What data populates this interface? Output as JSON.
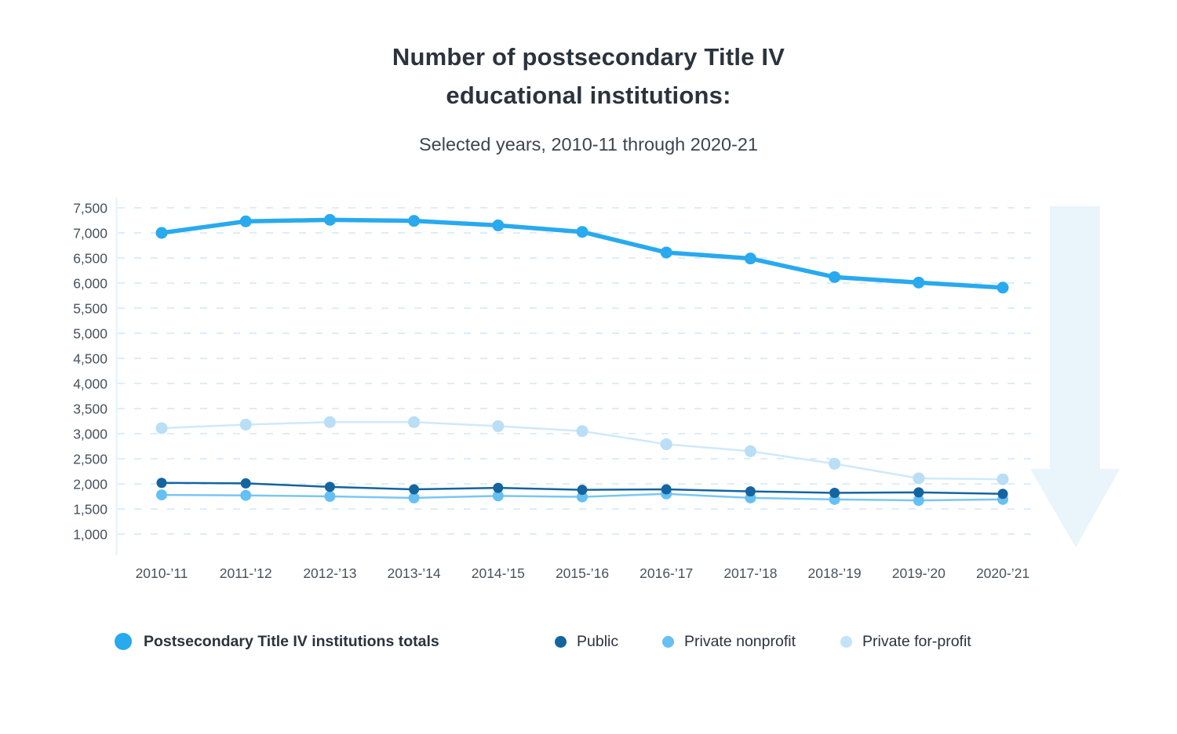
{
  "title": {
    "line1": "Number of postsecondary Title IV",
    "line2": "educational institutions:"
  },
  "subtitle": "Selected years, 2010-11 through 2020-21",
  "legend": [
    {
      "label": "Postsecondary Title IV institutions totals",
      "color": "#29a9ee",
      "emphasis": true
    },
    {
      "label": "Public",
      "color": "#1464a0",
      "emphasis": false
    },
    {
      "label": "Private nonprofit",
      "color": "#66c0f2",
      "emphasis": false
    },
    {
      "label": "Private for-profit",
      "color": "#c3e3f8",
      "emphasis": false
    }
  ],
  "chart_data": {
    "type": "line",
    "title": "Number of postsecondary Title IV educational institutions",
    "subtitle": "Selected years, 2010-11 through 2020-21",
    "categories": [
      "2010-’11",
      "2011-’12",
      "2012-’13",
      "2013-’14",
      "2014-’15",
      "2015-’16",
      "2016-’17",
      "2017-’18",
      "2018-’19",
      "2019-’20",
      "2020-’21"
    ],
    "series": [
      {
        "name": "Postsecondary Title IV institutions totals",
        "color": "#29a9ee",
        "line_color": "#29a9ee",
        "values": [
          7000,
          7230,
          7260,
          7240,
          7150,
          7020,
          6610,
          6490,
          6120,
          6010,
          5910
        ]
      },
      {
        "name": "Public",
        "color": "#1464a0",
        "line_color": "#1464a0",
        "values": [
          2020,
          2010,
          1940,
          1890,
          1920,
          1880,
          1890,
          1850,
          1820,
          1830,
          1800
        ]
      },
      {
        "name": "Private nonprofit",
        "color": "#66c0f2",
        "line_color": "#7ac6f3",
        "values": [
          1780,
          1770,
          1750,
          1720,
          1760,
          1740,
          1800,
          1720,
          1690,
          1670,
          1690
        ]
      },
      {
        "name": "Private for-profit",
        "color": "#b9def5",
        "line_color": "#cfe9f9",
        "values": [
          3110,
          3180,
          3230,
          3230,
          3150,
          3050,
          2790,
          2650,
          2400,
          2110,
          2090
        ]
      }
    ],
    "xlabel": "",
    "ylabel": "",
    "ylim": [
      1000,
      7500
    ],
    "yticks": [
      7500,
      7000,
      6500,
      6000,
      5500,
      5000,
      4500,
      4000,
      3500,
      3000,
      2500,
      2000,
      1500,
      1000
    ],
    "grid": "horizontal-dashed",
    "legend_position": "bottom"
  },
  "decor": {
    "arrow_direction": "down",
    "arrow_color": "#e9f4fb"
  },
  "colors": {
    "grid": "#dcedfb",
    "axis_line": "#e4f1fb",
    "tick_text": "#47525c",
    "title_text": "#2b333d",
    "subtitle_text": "#3b454f",
    "background": "#ffffff"
  }
}
